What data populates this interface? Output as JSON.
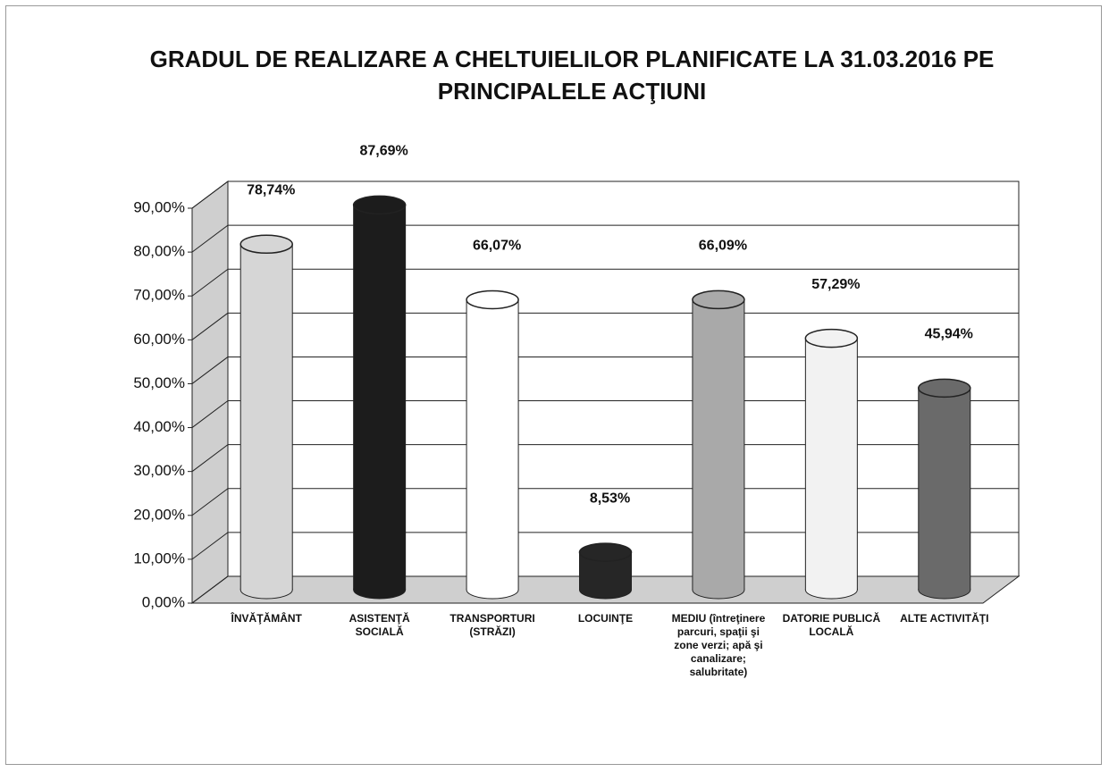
{
  "chart_data": {
    "type": "bar",
    "title": "GRADUL DE REALIZARE A CHELTUIELILOR PLANIFICATE LA 31.03.2016 PE PRINCIPALELE ACŢIUNI",
    "categories": [
      "ÎNVĂŢĂMÂNT",
      "ASISTENŢĂ SOCIALĂ",
      "TRANSPORTURI (STRĂZI)",
      "LOCUINŢE",
      "MEDIU (întreţinere parcuri, spaţii şi zone verzi; apă şi canalizare; salubritate)",
      "DATORIE PUBLICĂ LOCALĂ",
      "ALTE ACTIVITĂŢI"
    ],
    "values": [
      78.74,
      87.69,
      66.07,
      8.53,
      66.09,
      57.29,
      45.94
    ],
    "value_labels": [
      "78,74%",
      "87,69%",
      "66,07%",
      "8,53%",
      "66,09%",
      "57,29%",
      "45,94%"
    ],
    "colors": [
      "#d6d6d6",
      "#1c1c1c",
      "#ffffff",
      "#262626",
      "#a9a9a9",
      "#f2f2f2",
      "#6a6a6a"
    ],
    "ylim": [
      0,
      90
    ],
    "yticks": [
      {
        "value": 0,
        "label": "0,00%"
      },
      {
        "value": 10,
        "label": "10,00%"
      },
      {
        "value": 20,
        "label": "20,00%"
      },
      {
        "value": 30,
        "label": "30,00%"
      },
      {
        "value": 40,
        "label": "40,00%"
      },
      {
        "value": 50,
        "label": "50,00%"
      },
      {
        "value": 60,
        "label": "60,00%"
      },
      {
        "value": 70,
        "label": "70,00%"
      },
      {
        "value": 80,
        "label": "80,00%"
      },
      {
        "value": 90,
        "label": "90,00%"
      }
    ],
    "grid": true
  }
}
